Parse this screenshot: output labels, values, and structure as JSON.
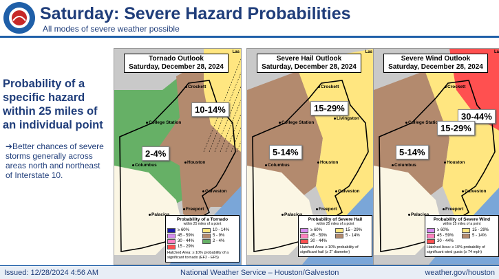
{
  "header": {
    "title": "Saturday: Severe Hazard Probabilities",
    "subtitle": "All modes of severe weather possible",
    "logo": "NATIONAL WEATHER SERVICE"
  },
  "sidebar": {
    "heading": "Probability of a specific hazard within 25 miles of an individual point",
    "bullet": "➔Better chances of severe storms generally across areas north and northeast of Interstate 10."
  },
  "maps": [
    {
      "title": "Tornado Outlook",
      "date": "Saturday, December 28, 2024",
      "corner": "Las",
      "risks": [
        "10-14%",
        "2-4%"
      ],
      "cities": [
        "Crockett",
        "College Station",
        "Columbus",
        "Houston",
        "Galveston",
        "Palacios",
        "Freeport"
      ],
      "legend": {
        "title": "Probability of a Tornado",
        "subtitle": "within 25 miles of a point",
        "items": [
          {
            "label": "≥ 60%",
            "color": "#1a1aa8"
          },
          {
            "label": "10 - 14%",
            "color": "#ffe680"
          },
          {
            "label": "45 - 59%",
            "color": "#d58cf0"
          },
          {
            "label": "5 - 9%",
            "color": "#b38a6e"
          },
          {
            "label": "30 - 44%",
            "color": "#ff80c0"
          },
          {
            "label": "2 - 4%",
            "color": "#66b066"
          },
          {
            "label": "15 - 29%",
            "color": "#ff5050"
          }
        ],
        "note": "Hatched Area: ≥ 10% probability of a significant tornado (EF2 - EF5)"
      }
    },
    {
      "title": "Severe Hail Outlook",
      "date": "Saturday, December 28, 2024",
      "corner": "Las",
      "risks": [
        "15-29%",
        "5-14%"
      ],
      "cities": [
        "Crockett",
        "College Station",
        "Livingston",
        "Columbus",
        "Houston",
        "Galveston",
        "Palacios",
        "Freeport"
      ],
      "legend": {
        "title": "Probability of Severe Hail",
        "subtitle": "within 25 miles of a point",
        "items": [
          {
            "label": "≥ 60%",
            "color": "#d58cf0"
          },
          {
            "label": "15 - 29%",
            "color": "#ffe680"
          },
          {
            "label": "45 - 59%",
            "color": "#ff80c0"
          },
          {
            "label": "5 - 14%",
            "color": "#b38a6e"
          },
          {
            "label": "30 - 44%",
            "color": "#ff5050"
          }
        ],
        "note": "Hatched Area: ≥ 10% probability of significant hail (≥ 2\" diameter)"
      }
    },
    {
      "title": "Severe Wind Outlook",
      "date": "Saturday, December 28, 2024",
      "corner": "La",
      "risks": [
        "30-44%",
        "15-29%",
        "5-14%"
      ],
      "cities": [
        "Crockett",
        "College Station",
        "Livingston",
        "Columbus",
        "Houston",
        "Galveston",
        "Palacios",
        "Freeport"
      ],
      "legend": {
        "title": "Probability of Severe Wind",
        "subtitle": "within 25 miles of a point",
        "items": [
          {
            "label": "≥ 60%",
            "color": "#d58cf0"
          },
          {
            "label": "15 - 29%",
            "color": "#ffe680"
          },
          {
            "label": "45 - 59%",
            "color": "#ff80c0"
          },
          {
            "label": "5 - 14%",
            "color": "#b38a6e"
          },
          {
            "label": "30 - 44%",
            "color": "#ff5050"
          }
        ],
        "note": "Hatched Area: ≥ 10% probability of significant wind gusts (≥ 74 mph)"
      }
    }
  ],
  "footer": {
    "issued": "Issued: 12/28/2024 4:56 AM",
    "center": "National Weather Service – Houston/Galveston",
    "right": "weather.gov/houston"
  }
}
